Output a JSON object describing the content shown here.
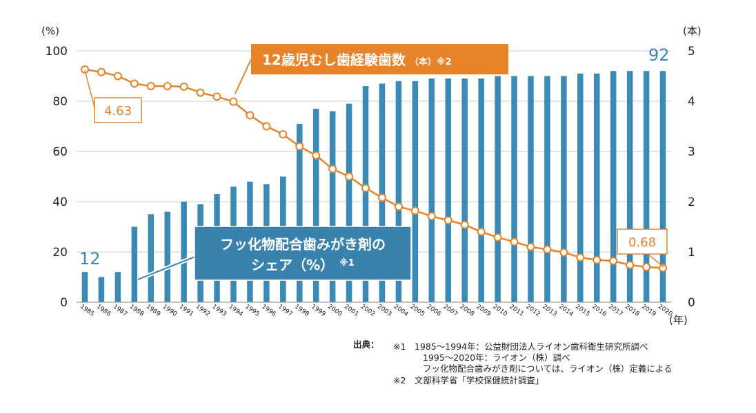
{
  "chart_data": {
    "type": "bar",
    "title": "",
    "colors": {
      "bar": "#3a8ab5",
      "line": "#e4832a",
      "grid": "#cccccc",
      "bar_callout_bg": "#3a82ae",
      "line_callout_bg": "#e8832a"
    },
    "categories": [
      "1985",
      "1986",
      "1987",
      "1988",
      "1989",
      "1990",
      "1991",
      "1992",
      "1993",
      "1994",
      "1995",
      "1996",
      "1997",
      "1998",
      "1999",
      "2000",
      "2001",
      "2002",
      "2003",
      "2004",
      "2005",
      "2006",
      "2007",
      "2008",
      "2009",
      "2010",
      "2011",
      "2012",
      "2013",
      "2014",
      "2015",
      "2016",
      "2017",
      "2018",
      "2019",
      "2020"
    ],
    "series": [
      {
        "name": "フッ化物配合歯みがき剤のシェア（%）※1",
        "axis": "left",
        "type": "bar",
        "values": [
          12,
          10,
          12,
          30,
          35,
          36,
          40,
          39,
          43,
          46,
          48,
          47,
          50,
          71,
          77,
          76,
          79,
          86,
          87,
          88,
          88,
          89,
          89,
          89,
          89,
          90,
          90,
          90,
          90,
          90,
          91,
          91,
          92,
          92,
          92,
          92
        ]
      },
      {
        "name": "12歳児むし歯経験歯数（本）※2",
        "axis": "right",
        "type": "line",
        "values": [
          4.63,
          4.58,
          4.5,
          4.35,
          4.3,
          4.3,
          4.29,
          4.17,
          4.09,
          3.99,
          3.72,
          3.5,
          3.34,
          3.1,
          2.92,
          2.65,
          2.5,
          2.27,
          2.08,
          1.9,
          1.82,
          1.71,
          1.63,
          1.54,
          1.4,
          1.29,
          1.2,
          1.1,
          1.05,
          0.99,
          0.89,
          0.84,
          0.82,
          0.74,
          0.7,
          0.68
        ]
      }
    ],
    "y_left": {
      "unit": "(%)",
      "min": 0,
      "max": 100,
      "ticks": [
        "0",
        "20",
        "40",
        "60",
        "80",
        "100"
      ]
    },
    "y_right": {
      "unit": "(本)",
      "min": 0,
      "max": 5,
      "ticks": [
        "0",
        "1",
        "2",
        "3",
        "4",
        "5"
      ]
    },
    "xlabel": "(年)",
    "annotations": {
      "bar_start": "12",
      "bar_end": "92",
      "line_start": "4.63",
      "line_end": "0.68",
      "line_callout": {
        "main": "12歳児むし歯経験歯数",
        "unit": "（本）",
        "note": "※2"
      },
      "bar_callout": {
        "line1": "フッ化物配合歯みがき剤の",
        "line2": "シェア（%）",
        "note": "※1"
      }
    },
    "grid": true,
    "legend": "none"
  },
  "source": {
    "label": "出典：",
    "lines": [
      "※1　1985～1994年：公益財団法人ライオン歯科衛生研究所調べ",
      "1995～2020年：ライオン（株）調べ",
      "フッ化物配合歯みがき剤については、ライオン（株）定義による",
      "※2　文部科学省「学校保健統計調査」"
    ]
  }
}
